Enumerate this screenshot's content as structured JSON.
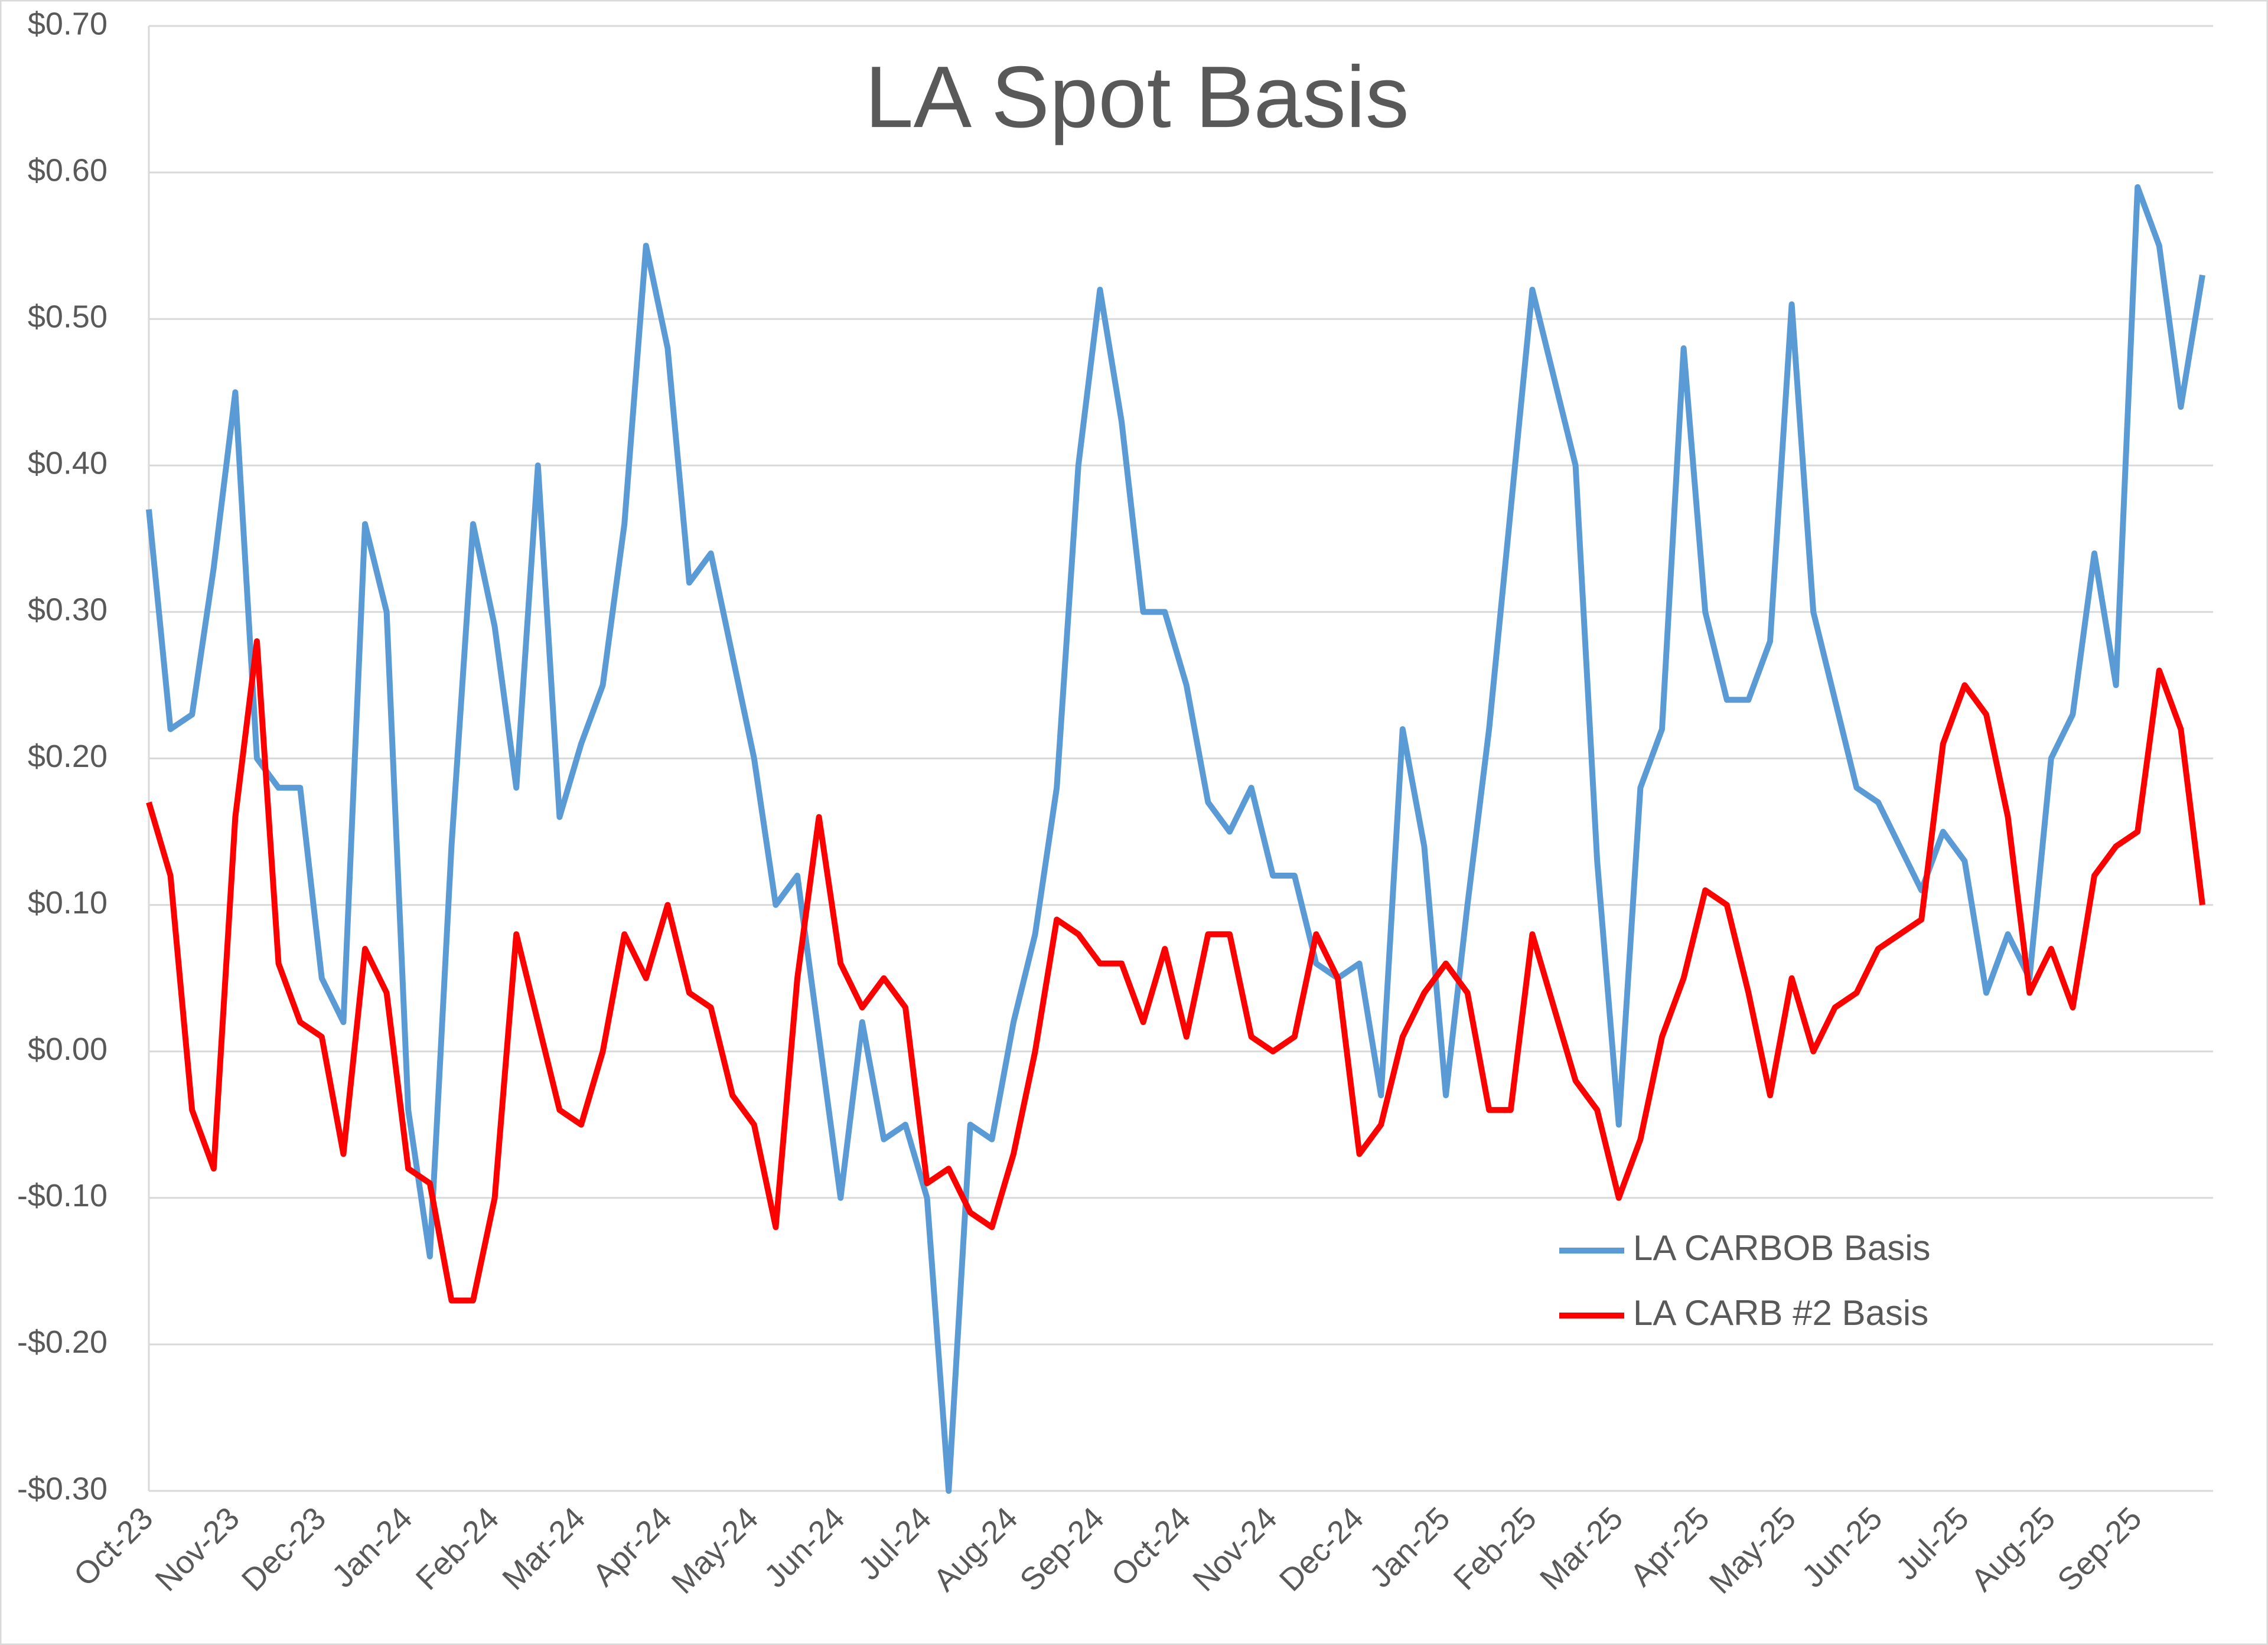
{
  "chart_data": {
    "type": "line",
    "title": "LA Spot Basis",
    "categories": [
      "Oct-23",
      null,
      null,
      null,
      "Nov-23",
      null,
      null,
      null,
      "Dec-23",
      null,
      null,
      null,
      "Jan-24",
      null,
      null,
      null,
      "Feb-24",
      null,
      null,
      null,
      "Mar-24",
      null,
      null,
      null,
      "Apr-24",
      null,
      null,
      null,
      "May-24",
      null,
      null,
      null,
      "Jun-24",
      null,
      null,
      null,
      "Jul-24",
      null,
      null,
      null,
      "Aug-24",
      null,
      null,
      null,
      "Sep-24",
      null,
      null,
      null,
      "Oct-24",
      null,
      null,
      null,
      "Nov-24",
      null,
      null,
      null,
      "Dec-24",
      null,
      null,
      null,
      "Jan-25",
      null,
      null,
      null,
      "Feb-25",
      null,
      null,
      null,
      "Mar-25",
      null,
      null,
      null,
      "Apr-25",
      null,
      null,
      null,
      "May-25",
      null,
      null,
      null,
      "Jun-25",
      null,
      null,
      null,
      "Jul-25",
      null,
      null,
      null,
      "Aug-25",
      null,
      null,
      null,
      "Sep-25",
      null,
      null,
      null
    ],
    "series": [
      {
        "name": "LA CARBOB Basis",
        "color": "#5b9bd5",
        "values": [
          0.37,
          0.22,
          0.23,
          0.33,
          0.45,
          0.2,
          0.18,
          0.18,
          0.05,
          0.02,
          0.36,
          0.3,
          -0.04,
          -0.14,
          0.14,
          0.36,
          0.29,
          0.18,
          0.4,
          0.16,
          0.21,
          0.25,
          0.36,
          0.55,
          0.48,
          0.32,
          0.34,
          0.27,
          0.2,
          0.1,
          0.12,
          0.01,
          -0.1,
          0.02,
          -0.06,
          -0.05,
          -0.1,
          -0.3,
          -0.05,
          -0.06,
          0.02,
          0.08,
          0.18,
          0.4,
          0.52,
          0.43,
          0.3,
          0.3,
          0.25,
          0.17,
          0.15,
          0.18,
          0.12,
          0.12,
          0.06,
          0.05,
          0.06,
          -0.03,
          0.22,
          0.14,
          -0.03,
          0.1,
          0.22,
          0.37,
          0.52,
          0.46,
          0.4,
          0.13,
          -0.05,
          0.18,
          0.22,
          0.48,
          0.3,
          0.24,
          0.24,
          0.28,
          0.51,
          0.3,
          0.24,
          0.18,
          0.17,
          0.14,
          0.11,
          0.15,
          0.13,
          0.04,
          0.08,
          0.05,
          0.2,
          0.23,
          0.34,
          0.25,
          0.59,
          0.55,
          0.44,
          0.53
        ]
      },
      {
        "name": "LA CARB #2 Basis",
        "color": "#ff0000",
        "values": [
          0.17,
          0.12,
          -0.04,
          -0.08,
          0.16,
          0.28,
          0.06,
          0.02,
          0.01,
          -0.07,
          0.07,
          0.04,
          -0.08,
          -0.09,
          -0.17,
          -0.17,
          -0.1,
          0.08,
          0.02,
          -0.04,
          -0.05,
          0,
          0.08,
          0.05,
          0.1,
          0.04,
          0.03,
          -0.03,
          -0.05,
          -0.12,
          0.05,
          0.16,
          0.06,
          0.03,
          0.05,
          0.03,
          -0.09,
          -0.08,
          -0.11,
          -0.12,
          -0.07,
          0,
          0.09,
          0.08,
          0.06,
          0.06,
          0.02,
          0.07,
          0.01,
          0.08,
          0.08,
          0.01,
          0,
          0.01,
          0.08,
          0.05,
          -0.07,
          -0.05,
          0.01,
          0.04,
          0.06,
          0.04,
          -0.04,
          -0.04,
          0.08,
          0.03,
          -0.02,
          -0.04,
          -0.1,
          -0.06,
          0.01,
          0.05,
          0.11,
          0.1,
          0.04,
          -0.03,
          0.05,
          0,
          0.03,
          0.04,
          0.07,
          0.08,
          0.09,
          0.21,
          0.25,
          0.23,
          0.16,
          0.04,
          0.07,
          0.03,
          0.12,
          0.14,
          0.15,
          0.26,
          0.22,
          0.1
        ]
      }
    ],
    "ylim": [
      -0.3,
      0.7
    ],
    "yticks": [
      {
        "value": -0.3,
        "label": "-$0.30"
      },
      {
        "value": -0.2,
        "label": "-$0.20"
      },
      {
        "value": -0.1,
        "label": "-$0.10"
      },
      {
        "value": 0,
        "label": "$0.00"
      },
      {
        "value": 0.1,
        "label": "$0.10"
      },
      {
        "value": 0.2,
        "label": "$0.20"
      },
      {
        "value": 0.3,
        "label": "$0.30"
      },
      {
        "value": 0.4,
        "label": "$0.40"
      },
      {
        "value": 0.5,
        "label": "$0.50"
      },
      {
        "value": 0.6,
        "label": "$0.60"
      },
      {
        "value": 0.7,
        "label": "$0.70"
      }
    ],
    "grid": true,
    "legend_position": "lower right"
  }
}
